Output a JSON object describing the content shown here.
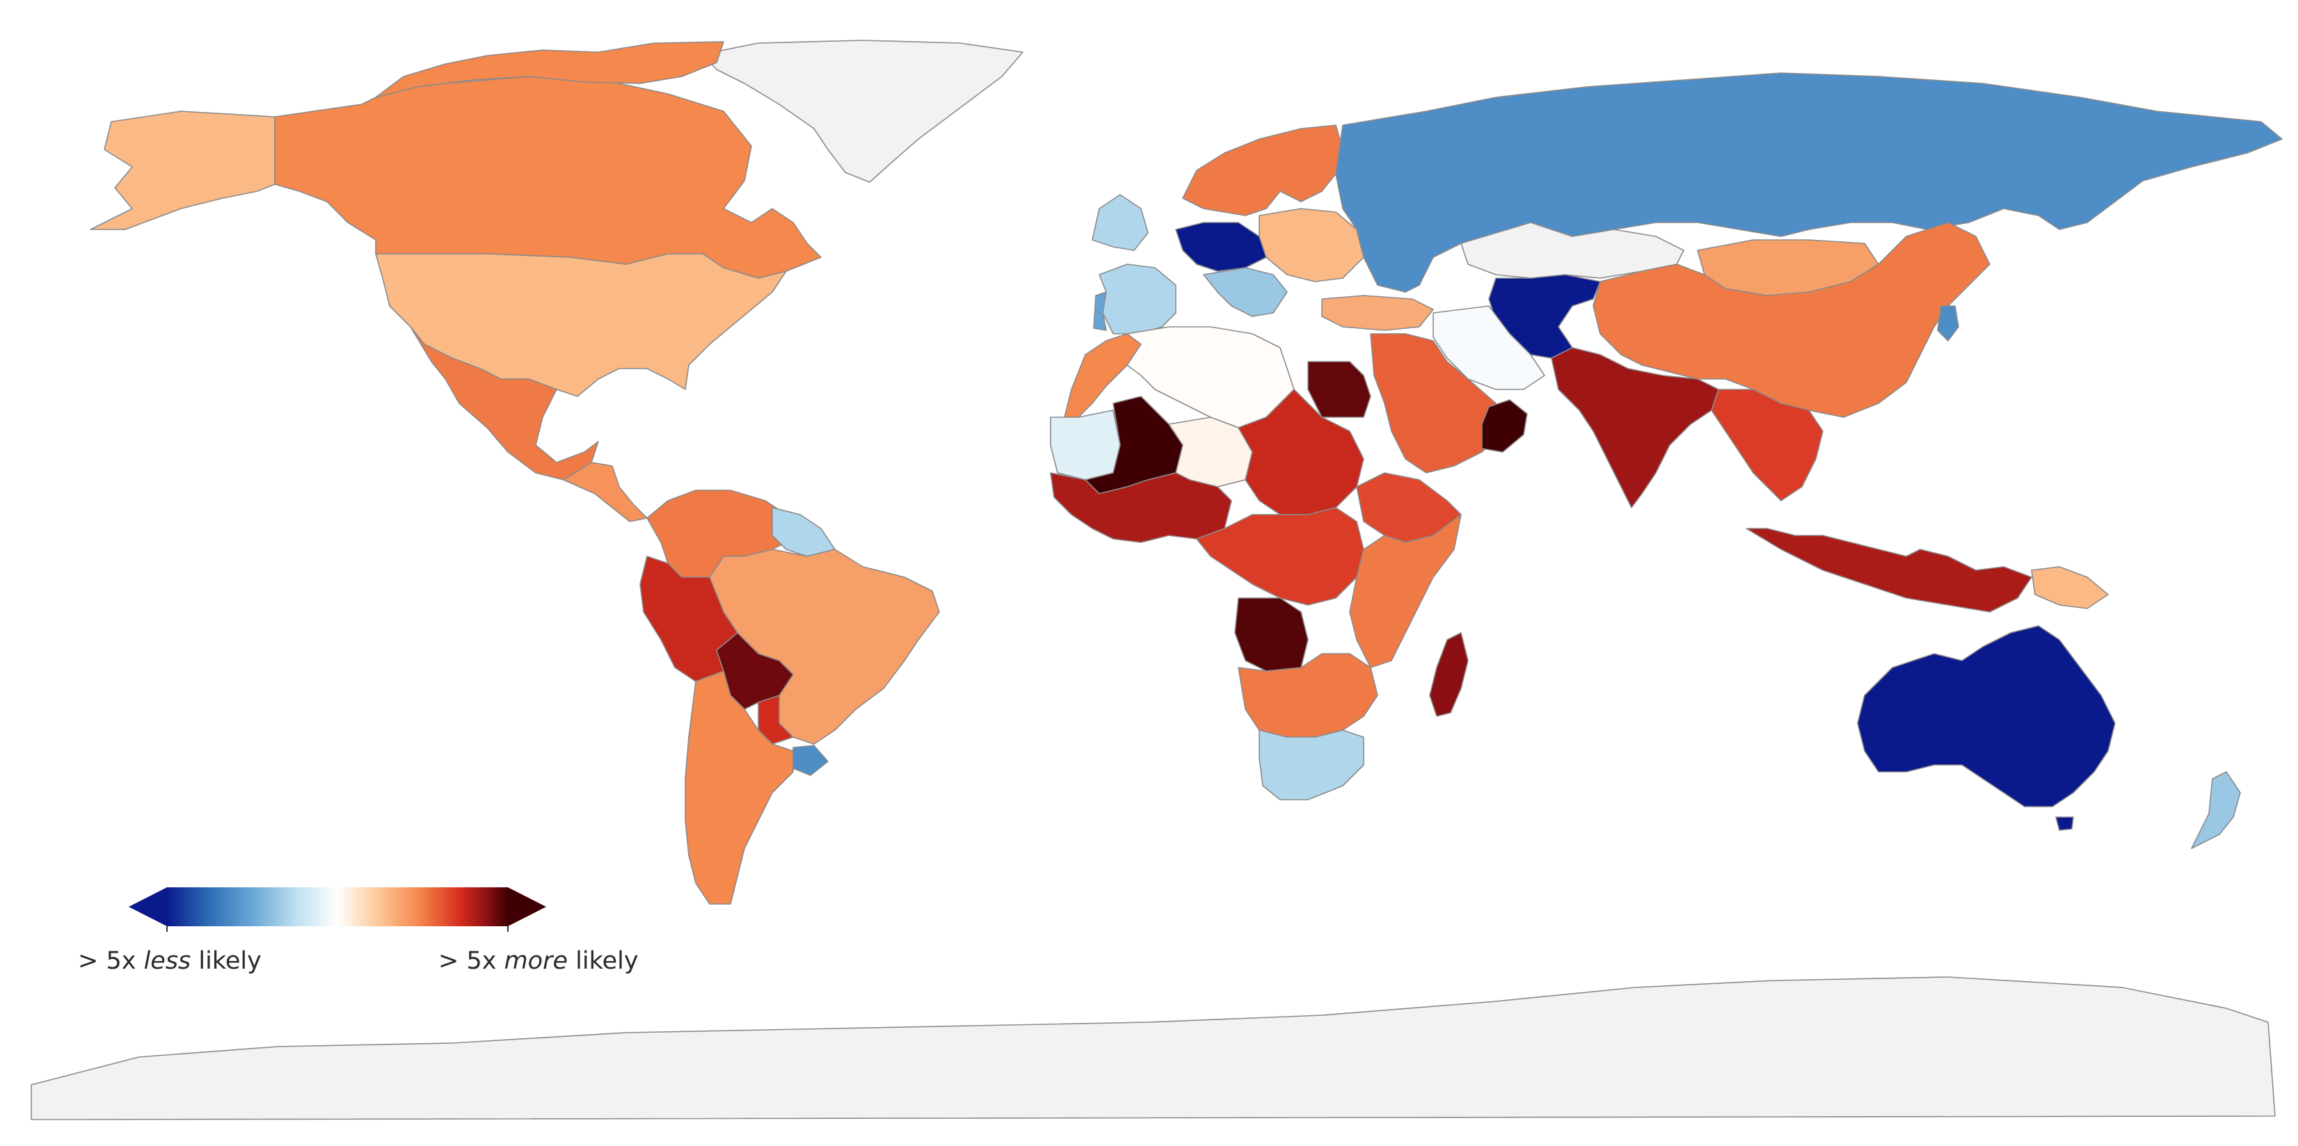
{
  "colors": {
    "no_data": "#f2f2f2",
    "ocean": "#ffffff",
    "border": "#8a8a8a",
    "scale": [
      "#0a1a8c",
      "#2c6bb3",
      "#6aa7d6",
      "#bfe0ef",
      "#ffffff",
      "#fdc898",
      "#f4874c",
      "#d62d1f",
      "#8b0f12",
      "#3f0004"
    ]
  },
  "legend": {
    "left_prefix": "> 5x ",
    "left_emph": "less",
    "left_suffix": " likely",
    "right_prefix": "> 5x ",
    "right_emph": "more",
    "right_suffix": " likely",
    "scale_min": 0.2,
    "scale_max": 5
  },
  "regions": [
    {
      "name": "greenland",
      "level": null
    },
    {
      "name": "canada",
      "level": 1.7
    },
    {
      "name": "alaska",
      "level": 1.3
    },
    {
      "name": "usa",
      "level": 1.3
    },
    {
      "name": "mexico",
      "level": 1.8
    },
    {
      "name": "central-america",
      "level": 1.6
    },
    {
      "name": "colombia-venezuela",
      "level": 1.8
    },
    {
      "name": "guianas",
      "level": 0.55
    },
    {
      "name": "peru",
      "level": 2.6
    },
    {
      "name": "brazil",
      "level": 1.5
    },
    {
      "name": "bolivia",
      "level": 4.0
    },
    {
      "name": "paraguay",
      "level": 2.5
    },
    {
      "name": "argentina-chile",
      "level": 1.7
    },
    {
      "name": "uruguay",
      "level": 0.35
    },
    {
      "name": "nordics",
      "level": 1.8
    },
    {
      "name": "uk-ireland",
      "level": 0.55
    },
    {
      "name": "france-spain",
      "level": 0.55
    },
    {
      "name": "portugal",
      "level": 0.4
    },
    {
      "name": "central-europe",
      "level": 0.2
    },
    {
      "name": "balkans",
      "level": 0.5
    },
    {
      "name": "eastern-europe",
      "level": 1.3
    },
    {
      "name": "russia",
      "level": 0.35
    },
    {
      "name": "kazakhstan",
      "level": null
    },
    {
      "name": "central-asia",
      "level": 0.2
    },
    {
      "name": "iran",
      "level": 0.8
    },
    {
      "name": "turkey",
      "level": 1.4
    },
    {
      "name": "middle-east",
      "level": 2.0
    },
    {
      "name": "oman",
      "level": 5.0
    },
    {
      "name": "india",
      "level": 3.2
    },
    {
      "name": "china",
      "level": 1.8
    },
    {
      "name": "mongolia",
      "level": 1.5
    },
    {
      "name": "korea",
      "level": 0.35
    },
    {
      "name": "southeast-asia",
      "level": 2.3
    },
    {
      "name": "indonesia",
      "level": 3.0
    },
    {
      "name": "papua-new-guinea",
      "level": 1.3
    },
    {
      "name": "australia",
      "level": 0.2
    },
    {
      "name": "new-zealand",
      "level": 0.5
    },
    {
      "name": "algeria-libya",
      "level": 0.85
    },
    {
      "name": "morocco",
      "level": 1.7
    },
    {
      "name": "mauritania",
      "level": 0.7
    },
    {
      "name": "mali",
      "level": 5.0
    },
    {
      "name": "niger",
      "level": 0.9
    },
    {
      "name": "west-africa",
      "level": 3.0
    },
    {
      "name": "chad-sudan",
      "level": 2.6
    },
    {
      "name": "egypt",
      "level": 4.2
    },
    {
      "name": "ethiopia",
      "level": 2.2
    },
    {
      "name": "central-africa",
      "level": 2.3
    },
    {
      "name": "east-africa",
      "level": 1.8
    },
    {
      "name": "angola",
      "level": 4.5
    },
    {
      "name": "southern-africa",
      "level": 1.8
    },
    {
      "name": "south-africa",
      "level": 0.55
    },
    {
      "name": "madagascar",
      "level": 3.5
    },
    {
      "name": "antarctica",
      "level": null
    }
  ]
}
